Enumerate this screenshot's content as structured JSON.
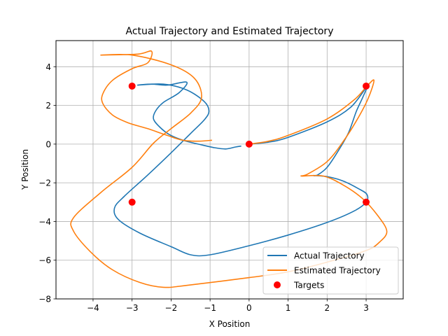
{
  "chart_data": {
    "type": "line",
    "title": "Actual Trajectory and Estimated Trajectory",
    "xlabel": "X Position",
    "ylabel": "Y Position",
    "xlim": [
      -4.95,
      3.95
    ],
    "ylim": [
      -8,
      5.35
    ],
    "xticks": [
      -4,
      -3,
      -2,
      -1,
      0,
      1,
      2,
      3
    ],
    "yticks": [
      -8,
      -6,
      -4,
      -2,
      0,
      2,
      4
    ],
    "grid": true,
    "legend_position": "lower right",
    "series": [
      {
        "name": "Actual Trajectory",
        "color": "#1f77b4",
        "points": [
          [
            -0.2,
            -0.1
          ],
          [
            -0.35,
            -0.15
          ],
          [
            -0.6,
            -0.25
          ],
          [
            -0.9,
            -0.18
          ],
          [
            -1.3,
            0.0
          ],
          [
            -1.7,
            0.2
          ],
          [
            -2.05,
            0.5
          ],
          [
            -2.3,
            0.9
          ],
          [
            -2.45,
            1.3
          ],
          [
            -2.4,
            1.7
          ],
          [
            -2.2,
            2.15
          ],
          [
            -1.8,
            2.65
          ],
          [
            -1.6,
            3.2
          ],
          [
            -2.1,
            3.05
          ],
          [
            -2.5,
            3.1
          ],
          [
            -2.85,
            3.05
          ],
          [
            -2.2,
            3.1
          ],
          [
            -1.6,
            2.8
          ],
          [
            -1.15,
            2.2
          ],
          [
            -1.03,
            1.7
          ],
          [
            -1.15,
            1.25
          ],
          [
            -1.5,
            0.55
          ],
          [
            -2.0,
            -0.45
          ],
          [
            -2.6,
            -1.6
          ],
          [
            -3.2,
            -2.7
          ],
          [
            -3.45,
            -3.3
          ],
          [
            -3.35,
            -3.9
          ],
          [
            -2.8,
            -4.6
          ],
          [
            -2.0,
            -5.3
          ],
          [
            -1.5,
            -5.72
          ],
          [
            -1.0,
            -5.72
          ],
          [
            0.0,
            -5.25
          ],
          [
            1.0,
            -4.7
          ],
          [
            2.0,
            -4.05
          ],
          [
            2.7,
            -3.45
          ],
          [
            3.0,
            -3.0
          ],
          [
            3.02,
            -2.6
          ],
          [
            2.8,
            -2.3
          ],
          [
            2.4,
            -1.9
          ],
          [
            2.0,
            -1.68
          ],
          [
            1.65,
            -1.62
          ],
          [
            1.75,
            -1.6
          ],
          [
            2.0,
            -1.2
          ],
          [
            2.3,
            -0.3
          ],
          [
            2.55,
            0.6
          ],
          [
            2.75,
            1.7
          ],
          [
            2.92,
            2.45
          ],
          [
            3.0,
            2.9
          ],
          [
            2.6,
            1.9
          ],
          [
            2.0,
            1.15
          ],
          [
            1.0,
            0.35
          ],
          [
            0.5,
            0.1
          ],
          [
            0.0,
            0.0
          ]
        ]
      },
      {
        "name": "Estimated Trajectory",
        "color": "#ff7f0e",
        "points": [
          [
            -0.95,
            0.2
          ],
          [
            -1.3,
            0.15
          ],
          [
            -1.7,
            0.2
          ],
          [
            -2.1,
            0.45
          ],
          [
            -2.6,
            0.8
          ],
          [
            -3.1,
            1.1
          ],
          [
            -3.5,
            1.5
          ],
          [
            -3.75,
            2.1
          ],
          [
            -3.75,
            2.6
          ],
          [
            -3.5,
            3.3
          ],
          [
            -3.0,
            3.9
          ],
          [
            -2.6,
            4.2
          ],
          [
            -2.5,
            4.8
          ],
          [
            -2.85,
            4.65
          ],
          [
            -3.8,
            4.6
          ],
          [
            -3.0,
            4.6
          ],
          [
            -2.0,
            4.1
          ],
          [
            -1.4,
            3.4
          ],
          [
            -1.22,
            2.4
          ],
          [
            -1.5,
            1.6
          ],
          [
            -2.0,
            0.8
          ],
          [
            -2.45,
            0.05
          ],
          [
            -3.0,
            -1.2
          ],
          [
            -3.8,
            -2.5
          ],
          [
            -4.5,
            -3.8
          ],
          [
            -4.5,
            -4.5
          ],
          [
            -4.05,
            -5.6
          ],
          [
            -3.5,
            -6.5
          ],
          [
            -2.8,
            -7.15
          ],
          [
            -2.2,
            -7.4
          ],
          [
            -1.6,
            -7.3
          ],
          [
            0.0,
            -6.9
          ],
          [
            1.0,
            -6.6
          ],
          [
            2.0,
            -6.1
          ],
          [
            3.0,
            -5.5
          ],
          [
            3.35,
            -5.05
          ],
          [
            3.53,
            -4.5
          ],
          [
            3.3,
            -3.7
          ],
          [
            2.9,
            -2.8
          ],
          [
            2.4,
            -2.1
          ],
          [
            1.9,
            -1.65
          ],
          [
            1.35,
            -1.65
          ],
          [
            1.5,
            -1.55
          ],
          [
            2.0,
            -0.9
          ],
          [
            2.4,
            0.1
          ],
          [
            2.75,
            1.2
          ],
          [
            3.05,
            2.35
          ],
          [
            3.2,
            3.3
          ],
          [
            3.0,
            2.95
          ],
          [
            2.7,
            2.3
          ],
          [
            2.0,
            1.3
          ],
          [
            1.0,
            0.45
          ],
          [
            0.5,
            0.15
          ],
          [
            0.0,
            0.0
          ]
        ]
      }
    ],
    "targets": {
      "name": "Targets",
      "color": "#ff0000",
      "points": [
        [
          -3,
          3
        ],
        [
          0,
          0
        ],
        [
          3,
          3
        ],
        [
          -3,
          -3
        ],
        [
          3,
          -3
        ]
      ]
    }
  }
}
